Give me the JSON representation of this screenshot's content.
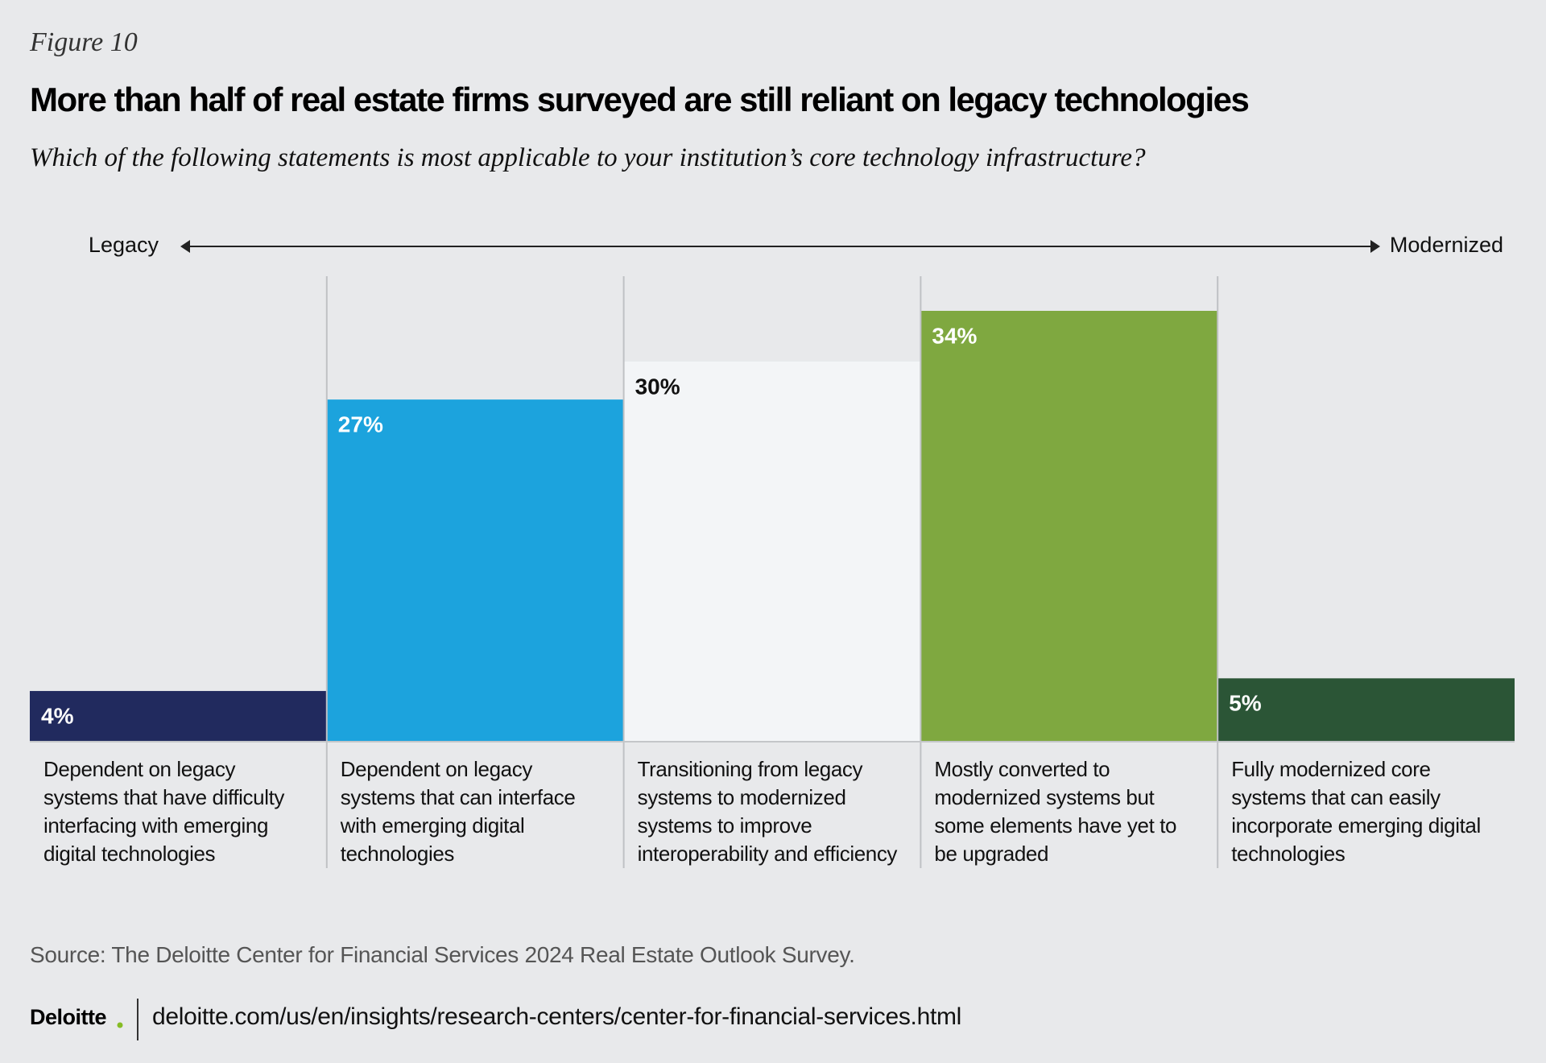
{
  "figure_label": "Figure 10",
  "chart_data": {
    "type": "bar",
    "title": "More than half of real estate firms surveyed are still reliant on legacy technologies",
    "subtitle": "Which of the following statements is most applicable to your institution’s core technology infrastructure?",
    "scale_labels": [
      "Legacy",
      "Modernized"
    ],
    "categories": [
      "Dependent on legacy systems that have difficulty interfacing with emerging digital technologies",
      "Dependent on legacy systems that can interface with emerging digital technologies",
      "Transitioning from legacy systems to modernized systems to improve interoperability and efficiency",
      "Mostly converted to modernized systems but some elements have yet to be upgraded",
      "Fully modernized core systems that can easily incorporate emerging digital technologies"
    ],
    "values": [
      4,
      27,
      30,
      34,
      5
    ],
    "value_labels": [
      "4%",
      "27%",
      "30%",
      "34%",
      "5%"
    ],
    "colors": [
      "#212a5e",
      "#1ca3dd",
      "#f3f5f7",
      "#7fa840",
      "#2b5536"
    ]
  },
  "source": "Source: The Deloitte Center for Financial Services 2024 Real Estate Outlook Survey.",
  "footer": {
    "brand": "Deloitte",
    "url": "deloitte.com/us/en/insights/research-centers/center-for-financial-services.html"
  }
}
